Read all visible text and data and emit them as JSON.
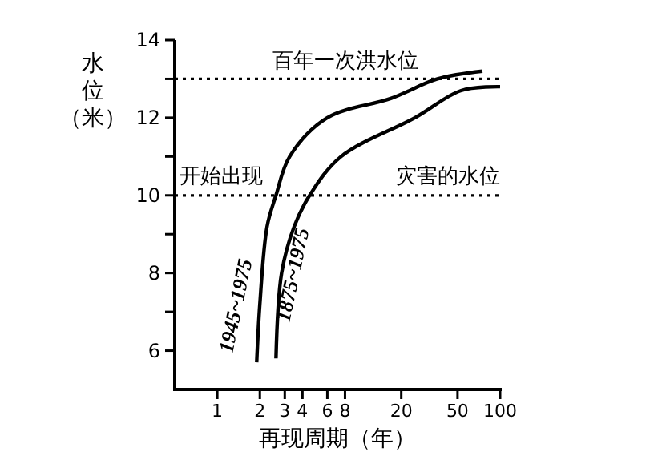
{
  "chart_data": {
    "type": "line",
    "xlabel": "再现周期（年）",
    "ylabel": "水位（米）",
    "log": "x",
    "xlim": [
      0.5,
      100
    ],
    "xticks": [
      1,
      2,
      3,
      4,
      6,
      8,
      20,
      50,
      100
    ],
    "ylim": [
      5,
      14
    ],
    "yticks": [
      6,
      {
        "value": 7,
        "label": null
      },
      8,
      {
        "value": 9,
        "label": null
      },
      10,
      {
        "value": 11,
        "label": null
      },
      12,
      {
        "value": 13,
        "label": null
      },
      14
    ],
    "grid": false,
    "marker": "none",
    "line_style": "solid",
    "series": [
      {
        "name": "1945~1975",
        "color": "#000000",
        "x": [
          1.9,
          2.0,
          2.25,
          2.6,
          3.25,
          6,
          17,
          36,
          75
        ],
        "values": [
          5.7,
          7.2,
          9.2,
          10,
          11,
          12,
          12.5,
          13.0,
          13.2
        ]
      },
      {
        "name": "1875~1975",
        "color": "#000000",
        "x": [
          2.6,
          2.85,
          3.5,
          4.5,
          7.5,
          25,
          53,
          100
        ],
        "values": [
          5.8,
          8,
          9.2,
          10,
          11,
          12,
          12.7,
          12.8
        ]
      }
    ],
    "ref_lines": [
      {
        "axis": "y",
        "value": 13,
        "label": "百年一次洪水位",
        "line_style": "dotted",
        "color": "#000000"
      },
      {
        "axis": "y",
        "value": 10,
        "line_style": "dotted",
        "color": "#000000"
      }
    ],
    "annotations": [
      {
        "text": "开始出现",
        "x": 0.5,
        "y": 10
      },
      {
        "text": "灾害的水位",
        "x": 100,
        "y": 10
      }
    ]
  }
}
